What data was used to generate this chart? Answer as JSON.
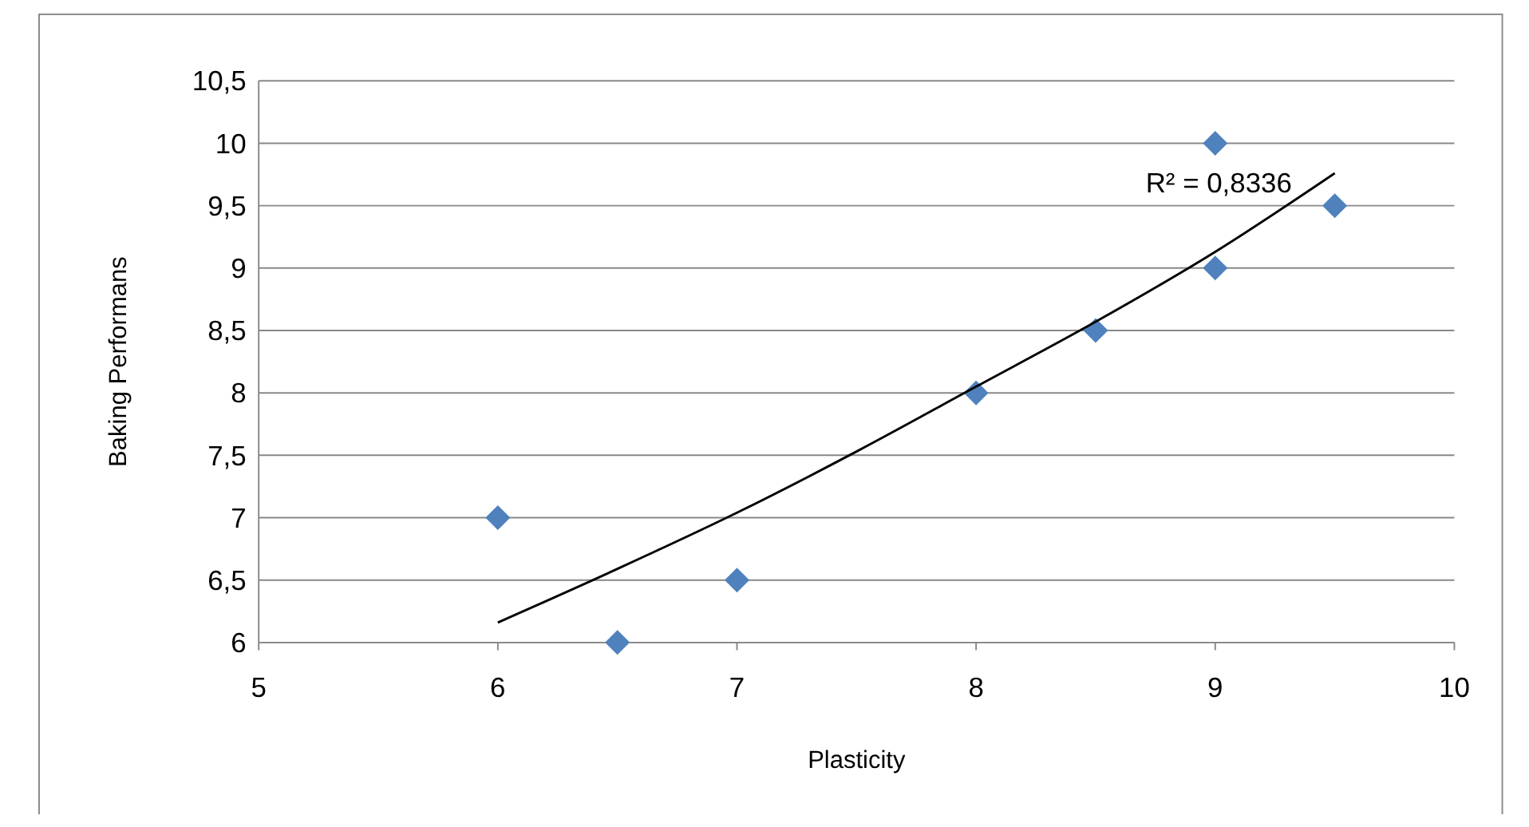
{
  "chart_data": {
    "type": "scatter",
    "xlabel": "Plasticity",
    "ylabel": "Baking Performans",
    "xlim": [
      5,
      10
    ],
    "xticks": [
      5,
      6,
      7,
      8,
      9,
      10
    ],
    "ylim": [
      6,
      10.5
    ],
    "yticks": [
      6,
      {
        "value": 6.5,
        "label": "6,5"
      },
      7,
      {
        "value": 7.5,
        "label": "7,5"
      },
      8,
      {
        "value": 8.5,
        "label": "8,5"
      },
      9,
      {
        "value": 9.5,
        "label": "9,5"
      },
      10,
      {
        "value": 10.5,
        "label": "10,5"
      }
    ],
    "grid": "y",
    "marker": "diamond",
    "series": [
      {
        "type": "scatter",
        "color": "#4f81bd",
        "x": [
          6,
          6.5,
          7,
          8,
          8.5,
          9,
          9,
          9.5
        ],
        "values": [
          7,
          6,
          6.5,
          8,
          8.5,
          9,
          10,
          9.5
        ]
      },
      {
        "type": "line",
        "color": "#000000",
        "marker": "none",
        "line_style": "solid",
        "x": [
          6,
          6.5,
          7,
          7.5,
          8,
          8.5,
          9,
          9.5
        ],
        "values": [
          6.16,
          6.59,
          7.04,
          7.53,
          8.05,
          8.57,
          9.13,
          9.76
        ]
      }
    ],
    "annotations": [
      "R² = 0,8336"
    ]
  }
}
